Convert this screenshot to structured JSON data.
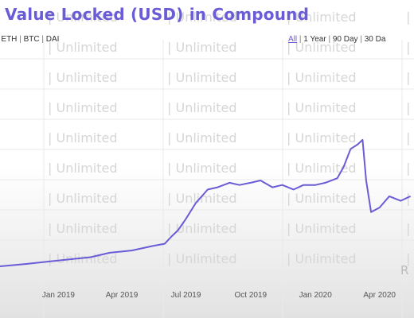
{
  "header": {
    "title": "Value Locked (USD) in Compound"
  },
  "currency_filters": [
    {
      "label": "D",
      "active": true
    },
    {
      "label": "ETH",
      "active": false
    },
    {
      "label": "BTC",
      "active": false
    },
    {
      "label": "DAI",
      "active": false
    }
  ],
  "range_filters": [
    {
      "label": "All",
      "active": true
    },
    {
      "label": "1 Year",
      "active": false
    },
    {
      "label": "90 Day",
      "active": false
    },
    {
      "label": "30 Da",
      "active": false
    }
  ],
  "separator": "|",
  "watermark_text": "Unlimited",
  "partial_right_label": "R",
  "colors": {
    "title": "#6a5cd6",
    "line": "#6a5cd6",
    "watermark": "#d6d6d6",
    "grid": "#e9e9e9",
    "fade": "#e2e2e2"
  },
  "chart_data": {
    "type": "line",
    "title": "Value Locked (USD) in Compound",
    "x_tick_labels": [
      "Jan 2019",
      "Apr 2019",
      "Jul 2019",
      "Oct 2019",
      "Jan 2020",
      "Apr 2020"
    ],
    "x_range": [
      "2018-10-10",
      "2020-05-20"
    ],
    "y_range": [
      0,
      1
    ],
    "y_scale_note": "no y-axis labels visible; values are relative heights",
    "grid": true,
    "series": [
      {
        "x": [
          "2018-10-10",
          "2018-11-15",
          "2018-12-15",
          "2019-01-15",
          "2019-02-15",
          "2019-03-15",
          "2019-04-15",
          "2019-05-15",
          "2019-06-01",
          "2019-06-10",
          "2019-06-20",
          "2019-07-01",
          "2019-07-15",
          "2019-08-01",
          "2019-08-15",
          "2019-09-01",
          "2019-09-15",
          "2019-10-01",
          "2019-10-15",
          "2019-11-01",
          "2019-11-15",
          "2019-12-01",
          "2019-12-15",
          "2020-01-01",
          "2020-01-15",
          "2020-02-01",
          "2020-02-10",
          "2020-02-20",
          "2020-03-01",
          "2020-03-08",
          "2020-03-13",
          "2020-03-20",
          "2020-04-01",
          "2020-04-15",
          "2020-05-01",
          "2020-05-15"
        ],
        "values": [
          0.06,
          0.07,
          0.08,
          0.09,
          0.1,
          0.12,
          0.13,
          0.15,
          0.16,
          0.19,
          0.22,
          0.27,
          0.34,
          0.4,
          0.41,
          0.43,
          0.42,
          0.43,
          0.44,
          0.41,
          0.42,
          0.4,
          0.42,
          0.42,
          0.43,
          0.45,
          0.5,
          0.58,
          0.6,
          0.62,
          0.44,
          0.3,
          0.32,
          0.37,
          0.35,
          0.37
        ]
      }
    ]
  }
}
